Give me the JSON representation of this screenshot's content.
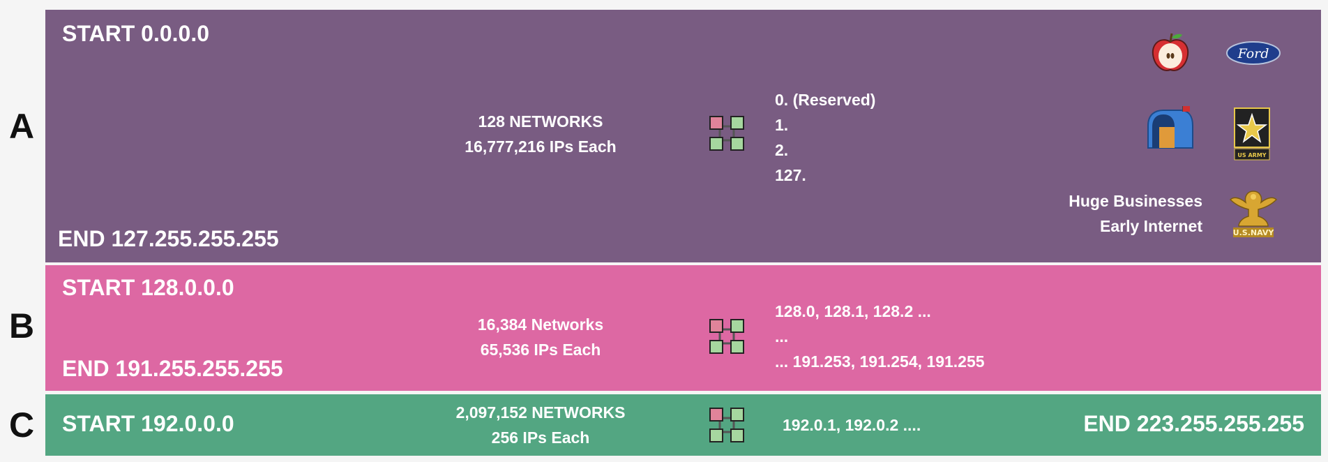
{
  "classes": [
    {
      "letter": "A",
      "start": "START 0.0.0.0",
      "end": "END 127.255.255.255",
      "networks": "128 NETWORKS",
      "ips": "16,777,216 IPs Each",
      "list": [
        "0. (Reserved)",
        "1.",
        "2.",
        "127."
      ],
      "note_lines": [
        "Huge Businesses",
        "Early Internet"
      ],
      "logos": [
        "apple-logo",
        "ford-logo",
        "mailbox-logo",
        "us-army-logo",
        "us-navy-logo"
      ],
      "logo_text": {
        "ford": "Ford",
        "army": "US ARMY",
        "navy": "U.S.NAVY"
      },
      "color": "#795c82"
    },
    {
      "letter": "B",
      "start": "START 128.0.0.0",
      "end": "END 191.255.255.255",
      "networks": "16,384 Networks",
      "ips": "65,536 IPs Each",
      "list": [
        "128.0, 128.1, 128.2 ...",
        "...",
        "... 191.253, 191.254, 191.255"
      ],
      "color": "#dd68a3"
    },
    {
      "letter": "C",
      "start": "START 192.0.0.0",
      "end": "END 223.255.255.255",
      "networks": "2,097,152 NETWORKS",
      "ips": "256 IPs Each",
      "list": [
        "192.0.1, 192.0.2 ...."
      ],
      "color": "#53a682"
    }
  ],
  "icon": "network-nodes-icon"
}
